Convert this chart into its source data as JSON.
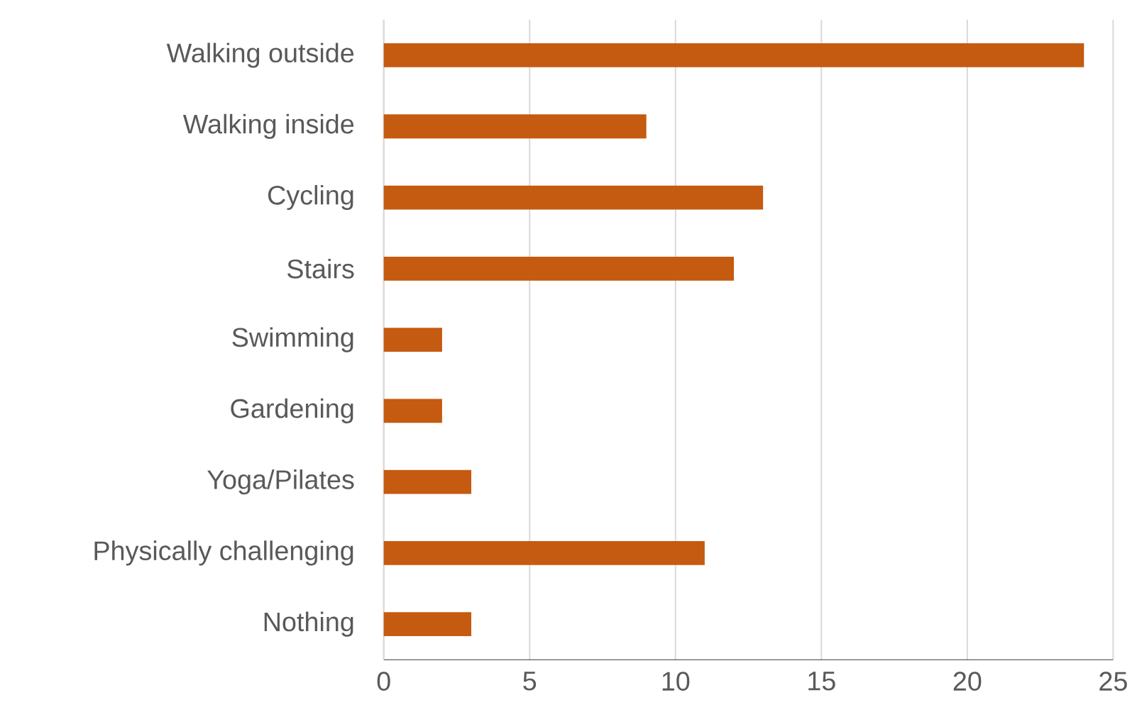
{
  "chart_data": {
    "type": "bar",
    "orientation": "horizontal",
    "categories": [
      "Walking outside",
      "Walking inside",
      "Cycling",
      "Stairs",
      "Swimming",
      "Gardening",
      "Yoga/Pilates",
      "Physically challenging",
      "Nothing"
    ],
    "values": [
      24,
      9,
      13,
      12,
      2,
      2,
      3,
      11,
      3
    ],
    "color": "#c55a11",
    "xlim": [
      0,
      25
    ],
    "xticks": [
      0,
      5,
      10,
      15,
      20,
      25
    ],
    "grid": "x"
  }
}
